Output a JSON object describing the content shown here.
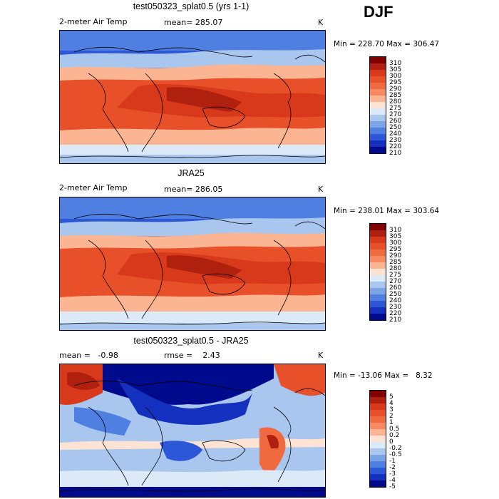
{
  "season": "DJF",
  "panels": [
    {
      "id": "model",
      "title": "test050323_splat0.5 (yrs 1-1)",
      "variable": "2-meter Air Temp",
      "stat": "mean= 285.07",
      "units": "K",
      "minmax": "Min = 228.70 Max = 306.47",
      "levels": [
        "310",
        "305",
        "300",
        "295",
        "290",
        "285",
        "280",
        "275",
        "270",
        "260",
        "250",
        "240",
        "230",
        "220",
        "210"
      ],
      "colors": [
        "#800000",
        "#b0200f",
        "#d8391b",
        "#e8502a",
        "#f06a40",
        "#f78a60",
        "#fbb592",
        "#fde3d4",
        "#dce9f7",
        "#a9c6ee",
        "#7aa4e6",
        "#4f7fe0",
        "#2c57d6",
        "#1330bf",
        "#000a8c"
      ]
    },
    {
      "id": "obs",
      "title": "JRA25",
      "variable": "2-meter Air Temp",
      "stat": "mean= 286.05",
      "units": "K",
      "minmax": "Min = 238.01 Max = 303.64",
      "levels": [
        "310",
        "305",
        "300",
        "295",
        "290",
        "285",
        "280",
        "275",
        "270",
        "260",
        "250",
        "240",
        "230",
        "220",
        "210"
      ],
      "colors": [
        "#800000",
        "#b0200f",
        "#d8391b",
        "#e8502a",
        "#f06a40",
        "#f78a60",
        "#fbb592",
        "#fde3d4",
        "#dce9f7",
        "#a9c6ee",
        "#7aa4e6",
        "#4f7fe0",
        "#2c57d6",
        "#1330bf",
        "#000a8c"
      ]
    },
    {
      "id": "diff",
      "title": "test050323_splat0.5 - JRA25",
      "stat_left": "mean =   -0.98",
      "stat_right": "rmse =    2.43",
      "units": "K",
      "minmax": "Min = -13.06 Max =   8.32",
      "levels": [
        "5",
        "4",
        "3",
        "2",
        "1",
        "0.5",
        "0.2",
        "0",
        "-0.2",
        "-0.5",
        "-1",
        "-2",
        "-3",
        "-4",
        "-5"
      ],
      "colors": [
        "#800000",
        "#b0200f",
        "#d8391b",
        "#e8502a",
        "#f06a40",
        "#f78a60",
        "#fbb592",
        "#fde3d4",
        "#dce9f7",
        "#a9c6ee",
        "#7aa4e6",
        "#4f7fe0",
        "#2c57d6",
        "#1330bf",
        "#000a8c"
      ]
    }
  ]
}
